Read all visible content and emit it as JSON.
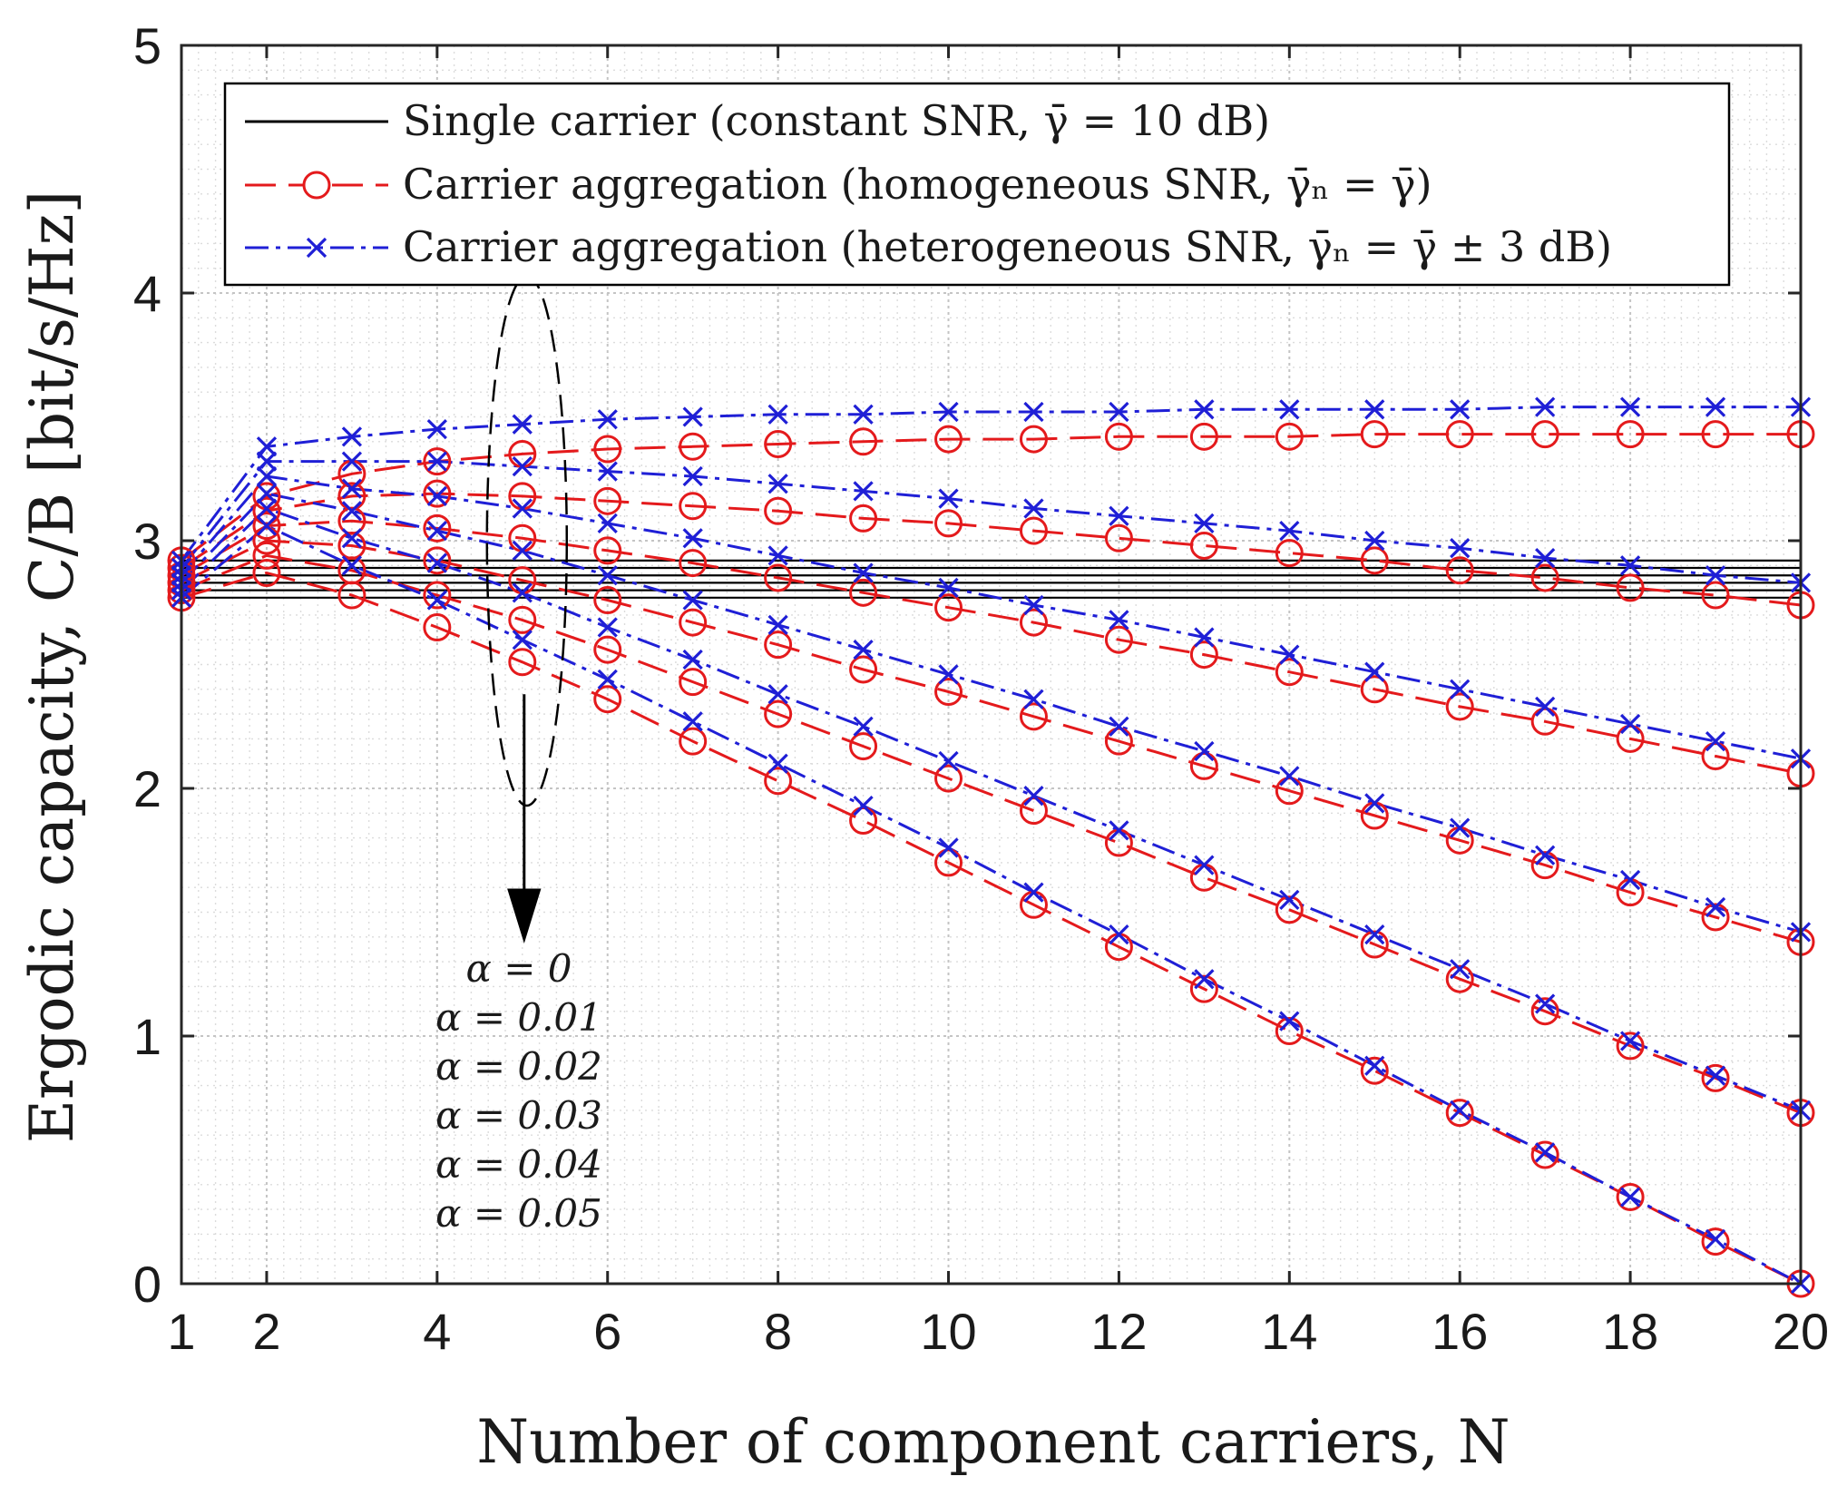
{
  "chart_data": {
    "type": "line",
    "title": "",
    "xlabel": "Number of component carriers, N",
    "ylabel": "Ergodic capacity, C/B [bit/s/Hz]",
    "xlim": [
      1,
      20
    ],
    "ylim": [
      0,
      5
    ],
    "xticks": [
      1,
      2,
      4,
      6,
      8,
      10,
      12,
      14,
      16,
      18,
      20
    ],
    "yticks": [
      0,
      1,
      2,
      3,
      4,
      5
    ],
    "grid": true,
    "minor_grid": true,
    "legend_position": "top",
    "x": [
      1,
      2,
      3,
      4,
      5,
      6,
      7,
      8,
      9,
      10,
      11,
      12,
      13,
      14,
      15,
      16,
      17,
      18,
      19,
      20
    ],
    "colors": {
      "single": "#000000",
      "homogeneous": "#e41a1c",
      "heterogeneous": "#1f1fd6"
    },
    "legend": [
      "Single carrier (constant SNR, γ̄ = 10 dB)",
      "Carrier aggregation (homogeneous SNR, γ̄ₙ = γ̄)",
      "Carrier aggregation (heterogeneous SNR, γ̄ₙ = γ̄ ± 3 dB)"
    ],
    "alpha_labels": [
      "α = 0",
      "α = 0.01",
      "α = 0.02",
      "α = 0.03",
      "α = 0.04",
      "α = 0.05"
    ],
    "single_carrier_levels": [
      2.92,
      2.89,
      2.86,
      2.83,
      2.8,
      2.77
    ],
    "series": [
      {
        "name": "Homogeneous, α = 0",
        "group": "homogeneous",
        "alpha": 0,
        "values": [
          2.92,
          3.18,
          3.27,
          3.32,
          3.35,
          3.37,
          3.38,
          3.39,
          3.4,
          3.41,
          3.41,
          3.42,
          3.42,
          3.42,
          3.43,
          3.43,
          3.43,
          3.43,
          3.43,
          3.43
        ]
      },
      {
        "name": "Homogeneous, α = 0.01",
        "group": "homogeneous",
        "alpha": 0.01,
        "values": [
          2.89,
          3.12,
          3.18,
          3.19,
          3.18,
          3.16,
          3.14,
          3.12,
          3.09,
          3.07,
          3.04,
          3.01,
          2.98,
          2.95,
          2.92,
          2.88,
          2.85,
          2.81,
          2.78,
          2.74
        ]
      },
      {
        "name": "Homogeneous, α = 0.02",
        "group": "homogeneous",
        "alpha": 0.02,
        "values": [
          2.86,
          3.06,
          3.08,
          3.05,
          3.01,
          2.96,
          2.91,
          2.85,
          2.79,
          2.73,
          2.67,
          2.6,
          2.54,
          2.47,
          2.4,
          2.33,
          2.27,
          2.2,
          2.13,
          2.06
        ]
      },
      {
        "name": "Homogeneous, α = 0.03",
        "group": "homogeneous",
        "alpha": 0.03,
        "values": [
          2.83,
          3.0,
          2.98,
          2.92,
          2.84,
          2.76,
          2.67,
          2.58,
          2.48,
          2.39,
          2.29,
          2.19,
          2.09,
          1.99,
          1.89,
          1.79,
          1.69,
          1.58,
          1.48,
          1.38
        ]
      },
      {
        "name": "Homogeneous, α = 0.04",
        "group": "homogeneous",
        "alpha": 0.04,
        "values": [
          2.8,
          2.94,
          2.88,
          2.78,
          2.68,
          2.56,
          2.43,
          2.3,
          2.17,
          2.04,
          1.91,
          1.78,
          1.64,
          1.51,
          1.37,
          1.23,
          1.1,
          0.96,
          0.83,
          0.69
        ]
      },
      {
        "name": "Homogeneous, α = 0.05",
        "group": "homogeneous",
        "alpha": 0.05,
        "values": [
          2.77,
          2.87,
          2.78,
          2.65,
          2.51,
          2.36,
          2.19,
          2.03,
          1.87,
          1.7,
          1.53,
          1.36,
          1.19,
          1.02,
          0.86,
          0.69,
          0.52,
          0.35,
          0.17,
          0.0
        ]
      },
      {
        "name": "Heterogeneous, α = 0",
        "group": "heterogeneous",
        "alpha": 0,
        "values": [
          2.92,
          3.38,
          3.42,
          3.45,
          3.47,
          3.49,
          3.5,
          3.51,
          3.51,
          3.52,
          3.52,
          3.52,
          3.53,
          3.53,
          3.53,
          3.53,
          3.54,
          3.54,
          3.54,
          3.54
        ]
      },
      {
        "name": "Heterogeneous, α = 0.01",
        "group": "heterogeneous",
        "alpha": 0.01,
        "values": [
          2.89,
          3.32,
          3.32,
          3.32,
          3.3,
          3.28,
          3.26,
          3.23,
          3.2,
          3.17,
          3.13,
          3.1,
          3.07,
          3.04,
          3.0,
          2.97,
          2.93,
          2.9,
          2.86,
          2.83
        ]
      },
      {
        "name": "Heterogeneous, α = 0.02",
        "group": "heterogeneous",
        "alpha": 0.02,
        "values": [
          2.86,
          3.26,
          3.21,
          3.18,
          3.13,
          3.07,
          3.01,
          2.94,
          2.87,
          2.81,
          2.74,
          2.68,
          2.61,
          2.54,
          2.47,
          2.4,
          2.33,
          2.26,
          2.19,
          2.12
        ]
      },
      {
        "name": "Heterogeneous, α = 0.03",
        "group": "heterogeneous",
        "alpha": 0.03,
        "values": [
          2.83,
          3.19,
          3.12,
          3.04,
          2.96,
          2.86,
          2.76,
          2.66,
          2.56,
          2.46,
          2.36,
          2.25,
          2.15,
          2.05,
          1.94,
          1.84,
          1.73,
          1.63,
          1.52,
          1.42
        ]
      },
      {
        "name": "Heterogeneous, α = 0.04",
        "group": "heterogeneous",
        "alpha": 0.04,
        "values": [
          2.8,
          3.13,
          3.01,
          2.91,
          2.79,
          2.65,
          2.52,
          2.38,
          2.25,
          2.11,
          1.97,
          1.83,
          1.69,
          1.55,
          1.41,
          1.27,
          1.13,
          0.98,
          0.84,
          0.7
        ]
      },
      {
        "name": "Heterogeneous, α = 0.05",
        "group": "heterogeneous",
        "alpha": 0.05,
        "values": [
          2.77,
          3.06,
          2.9,
          2.76,
          2.6,
          2.44,
          2.27,
          2.1,
          1.93,
          1.76,
          1.58,
          1.41,
          1.23,
          1.06,
          0.88,
          0.7,
          0.53,
          0.35,
          0.18,
          0.0
        ]
      }
    ]
  }
}
